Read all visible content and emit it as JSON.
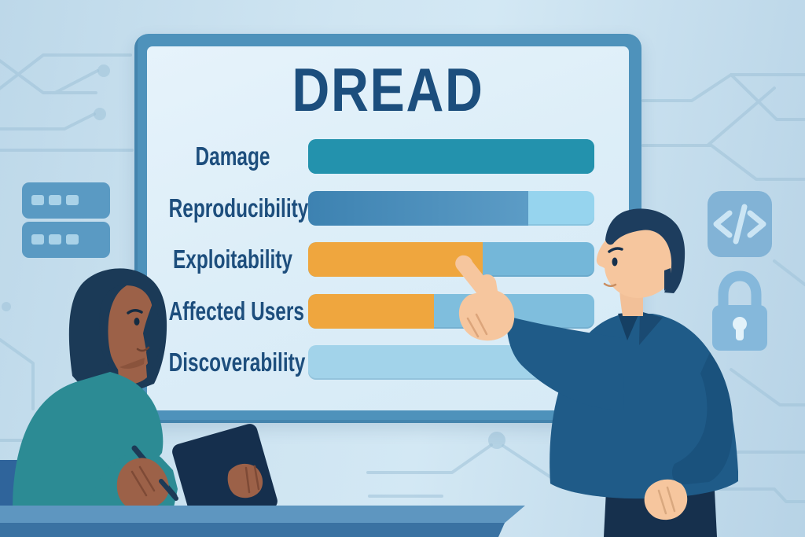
{
  "scene": {
    "description": "Flat vector illustration: a seated woman takes notes on a tablet while a standing man points at a DREAD threat-rating bar chart displayed on a large framed board; tech-themed background with circuit traces, server, code and padlock icons",
    "people": [
      {
        "role": "seated-woman-writing-on-tablet-with-stylus"
      },
      {
        "role": "standing-man-pointing-at-chart"
      }
    ]
  },
  "board": {
    "title": "DREAD",
    "rows": [
      {
        "label": "Damage",
        "percent": 100,
        "fill": "#2392ad",
        "track": "#2392ad"
      },
      {
        "label": "Reproducibility",
        "percent": 77,
        "fill": "#3d82b1",
        "fill2": "#5c9cc6",
        "track": "#96d4ee"
      },
      {
        "label": "Exploitability",
        "percent": 61,
        "fill": "#efa63e",
        "track": "#74b7d9"
      },
      {
        "label": "Affected Users",
        "percent": 44,
        "fill": "#efa63e",
        "track": "#7fbedd"
      },
      {
        "label": "Discoverability",
        "percent": 0,
        "fill": "#a2d3ea",
        "track": "#a2d3ea"
      }
    ]
  },
  "chart_data": {
    "type": "bar",
    "orientation": "horizontal",
    "title": "DREAD",
    "categories": [
      "Damage",
      "Reproducibility",
      "Exploitability",
      "Affected Users",
      "Discoverability"
    ],
    "values_percent_filled": [
      100,
      77,
      61,
      44,
      0
    ],
    "xlim_percent": [
      0,
      100
    ],
    "grid": false,
    "legend": false,
    "bar_colors": [
      "#2392ad",
      "#3d82b1",
      "#efa63e",
      "#efa63e",
      "#a2d3ea"
    ]
  },
  "icons": {
    "server_icon": "two stacked server units with indicator squares",
    "code_icon_glyph": "</>",
    "padlock_icon": "closed padlock with keyhole"
  },
  "colors": {
    "background": "#c4ddec",
    "board_frame": "#4e92bb",
    "board_inner": "#ddeef8",
    "title_text": "#1c4e7d",
    "label_text": "#1d4e7d",
    "teal_bar": "#2392ad",
    "orange_bar": "#efa63e",
    "desk_top": "#5e96c0",
    "desk_front": "#3a72a2",
    "man_shirt": "#1f5b88",
    "man_trousers": "#16304d",
    "woman_sweater": "#2c8b94",
    "tablet": "#152f4d"
  }
}
